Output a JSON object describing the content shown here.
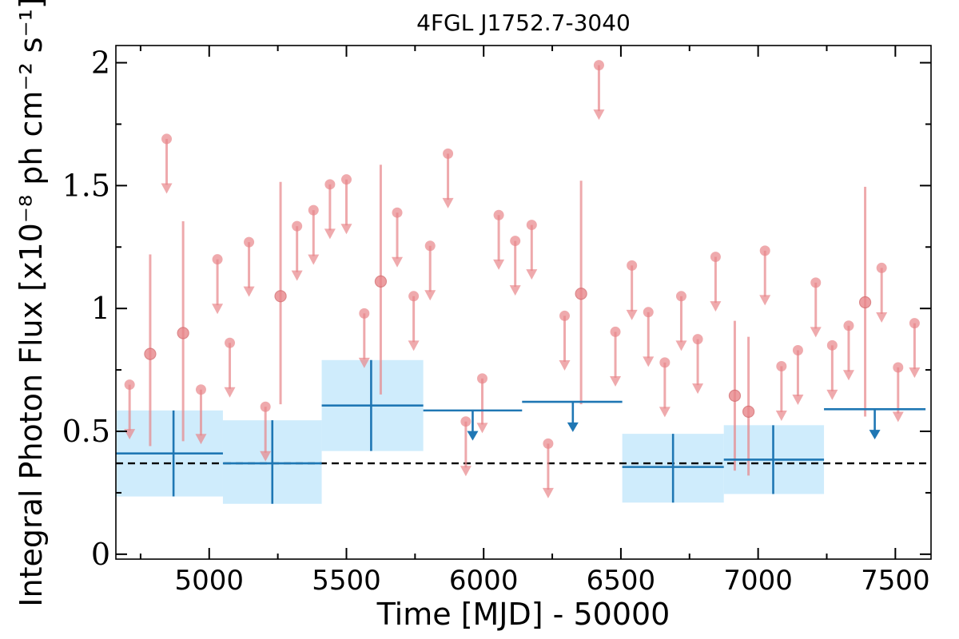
{
  "chart_data": {
    "type": "scatter",
    "title": "4FGL J1752.7-3040",
    "xlabel": "Time [MJD] - 50000",
    "ylabel": "Integral Photon Flux [x10⁻⁸ ph cm⁻² s⁻¹]",
    "xlim": [
      4660,
      7630
    ],
    "ylim": [
      -0.02,
      2.07
    ],
    "x_ticks": [
      5000,
      5500,
      6000,
      6500,
      7000,
      7500
    ],
    "y_ticks": [
      {
        "value": 0,
        "label": "0"
      },
      {
        "value": 0.5,
        "label": "0.5"
      },
      {
        "value": 1,
        "label": "1"
      },
      {
        "value": 1.5,
        "label": "1.5"
      },
      {
        "value": 2,
        "label": "2"
      }
    ],
    "grid": false,
    "colors": {
      "short_bins": "#e8868a",
      "long_bins": "#1f77b4",
      "long_bins_error_band": "#bfe6fb",
      "mean_line": "#000000"
    },
    "mean_flux": 0.37,
    "long_bins": [
      {
        "x0": 4660,
        "x1": 5050,
        "y": 0.41,
        "lo": 0.235,
        "hi": 0.585,
        "xc": 4870,
        "upper_limit": false
      },
      {
        "x0": 5050,
        "x1": 5410,
        "y": 0.37,
        "lo": 0.205,
        "hi": 0.545,
        "xc": 5230,
        "upper_limit": false
      },
      {
        "x0": 5410,
        "x1": 5780,
        "y": 0.605,
        "lo": 0.42,
        "hi": 0.79,
        "xc": 5590,
        "upper_limit": false
      },
      {
        "x0": 5780,
        "x1": 6140,
        "y": 0.585,
        "xc": 5960,
        "upper_limit": true
      },
      {
        "x0": 6140,
        "x1": 6505,
        "y": 0.62,
        "xc": 6325,
        "upper_limit": true
      },
      {
        "x0": 6505,
        "x1": 6875,
        "y": 0.355,
        "lo": 0.21,
        "hi": 0.49,
        "xc": 6690,
        "upper_limit": false
      },
      {
        "x0": 6875,
        "x1": 7240,
        "y": 0.385,
        "lo": 0.245,
        "hi": 0.525,
        "xc": 7055,
        "upper_limit": false
      },
      {
        "x0": 7240,
        "x1": 7610,
        "y": 0.59,
        "xc": 7425,
        "upper_limit": true
      }
    ],
    "short_bins_detections": [
      {
        "x": 4785,
        "y": 0.815,
        "lo": 0.44,
        "hi": 1.22
      },
      {
        "x": 4905,
        "y": 0.9,
        "lo": 0.46,
        "hi": 1.355
      },
      {
        "x": 5260,
        "y": 1.05,
        "lo": 0.61,
        "hi": 1.515
      },
      {
        "x": 5625,
        "y": 1.11,
        "lo": 0.65,
        "hi": 1.585
      },
      {
        "x": 6355,
        "y": 1.06,
        "lo": 0.61,
        "hi": 1.52
      },
      {
        "x": 6915,
        "y": 0.645,
        "lo": 0.34,
        "hi": 0.95
      },
      {
        "x": 6965,
        "y": 0.58,
        "lo": 0.32,
        "hi": 0.885
      },
      {
        "x": 7390,
        "y": 1.025,
        "lo": 0.56,
        "hi": 1.495
      }
    ],
    "short_bins_upper_limits": [
      {
        "x": 4710,
        "y": 0.69
      },
      {
        "x": 4845,
        "y": 1.69
      },
      {
        "x": 4970,
        "y": 0.67
      },
      {
        "x": 5030,
        "y": 1.2
      },
      {
        "x": 5075,
        "y": 0.86
      },
      {
        "x": 5145,
        "y": 1.27
      },
      {
        "x": 5205,
        "y": 0.6
      },
      {
        "x": 5320,
        "y": 1.335
      },
      {
        "x": 5380,
        "y": 1.4
      },
      {
        "x": 5440,
        "y": 1.505
      },
      {
        "x": 5500,
        "y": 1.525
      },
      {
        "x": 5565,
        "y": 0.98
      },
      {
        "x": 5685,
        "y": 1.39
      },
      {
        "x": 5745,
        "y": 1.05
      },
      {
        "x": 5805,
        "y": 1.255
      },
      {
        "x": 5870,
        "y": 1.63
      },
      {
        "x": 5935,
        "y": 0.54
      },
      {
        "x": 5995,
        "y": 0.715
      },
      {
        "x": 6055,
        "y": 1.38
      },
      {
        "x": 6115,
        "y": 1.275
      },
      {
        "x": 6175,
        "y": 1.34
      },
      {
        "x": 6235,
        "y": 0.45
      },
      {
        "x": 6295,
        "y": 0.97
      },
      {
        "x": 6420,
        "y": 1.99
      },
      {
        "x": 6480,
        "y": 0.905
      },
      {
        "x": 6540,
        "y": 1.175
      },
      {
        "x": 6600,
        "y": 0.985
      },
      {
        "x": 6660,
        "y": 0.78
      },
      {
        "x": 6720,
        "y": 1.05
      },
      {
        "x": 6780,
        "y": 0.875
      },
      {
        "x": 6845,
        "y": 1.21
      },
      {
        "x": 7025,
        "y": 1.235
      },
      {
        "x": 7085,
        "y": 0.765
      },
      {
        "x": 7145,
        "y": 0.83
      },
      {
        "x": 7210,
        "y": 1.105
      },
      {
        "x": 7270,
        "y": 0.85
      },
      {
        "x": 7330,
        "y": 0.93
      },
      {
        "x": 7450,
        "y": 1.165
      },
      {
        "x": 7510,
        "y": 0.76
      },
      {
        "x": 7570,
        "y": 0.94
      }
    ]
  }
}
